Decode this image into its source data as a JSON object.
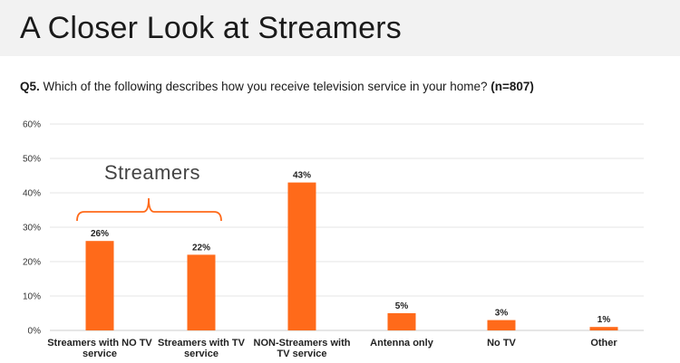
{
  "header": {
    "title": "A Closer Look at Streamers",
    "question_prefix": "Q5.",
    "question_text": " Which of the following describes how you receive television service in your home? ",
    "question_n": "(n=807)"
  },
  "chart_data": {
    "type": "bar",
    "title": "",
    "xlabel": "",
    "ylabel": "",
    "ylim": [
      0,
      60
    ],
    "yticks": [
      "0%",
      "10%",
      "20%",
      "30%",
      "40%",
      "50%",
      "60%"
    ],
    "yticks_values": [
      0,
      10,
      20,
      30,
      40,
      50,
      60
    ],
    "grid": true,
    "bar_color": "#ff6a1a",
    "categories": [
      [
        "Streamers with NO TV",
        "service"
      ],
      [
        "Streamers with TV",
        "service"
      ],
      [
        "NON-Streamers with",
        "TV service"
      ],
      [
        "Antenna only"
      ],
      [
        "No TV"
      ],
      [
        "Other"
      ]
    ],
    "values": [
      26,
      22,
      43,
      5,
      3,
      1
    ],
    "value_labels": [
      "26%",
      "22%",
      "43%",
      "5%",
      "3%",
      "1%"
    ],
    "annotation": {
      "label": "Streamers",
      "spans_categories": [
        0,
        1
      ],
      "color": "#ff6a1a"
    }
  }
}
